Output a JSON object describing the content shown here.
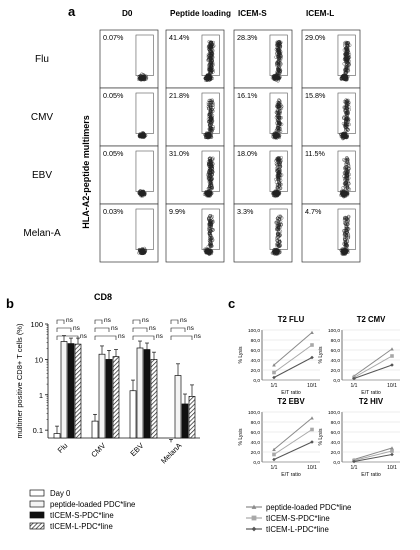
{
  "panel_a": {
    "letter": "a",
    "columns": [
      "D0",
      "Peptide loading",
      "ICEM-S",
      "ICEM-L"
    ],
    "rows": [
      {
        "label": "Flu",
        "values": [
          "0.07%",
          "41.4%",
          "28.3%",
          "29.0%"
        ]
      },
      {
        "label": "CMV",
        "values": [
          "0.05%",
          "21.8%",
          "16.1%",
          "15.8%"
        ]
      },
      {
        "label": "EBV",
        "values": [
          "0.05%",
          "31.0%",
          "18.0%",
          "11.5%"
        ]
      },
      {
        "label": "Melan-A",
        "values": [
          "0.03%",
          "9.9%",
          "3.3%",
          "4.7%"
        ]
      }
    ],
    "ylabel": "HLA-A2-peptide multimers",
    "xlabel": "CD8"
  },
  "panel_b": {
    "letter": "b",
    "chart_data": {
      "type": "bar",
      "categories": [
        "Flu",
        "CMV",
        "EBV",
        "MelanA"
      ],
      "ylabel": "multimer positive CD8+ T cells (%)",
      "yscale": "log",
      "ylim": [
        0.06,
        100
      ],
      "yticks": [
        "0.1",
        "1",
        "10",
        "100"
      ],
      "series": [
        {
          "name": "Day 0",
          "values": [
            0.08,
            0.18,
            1.3,
            0.045
          ],
          "errors": [
            0.05,
            0.1,
            1.3,
            0.01
          ],
          "fill": "#ffffff"
        },
        {
          "name": "peptide-loaded PDC*line",
          "values": [
            32,
            14,
            21,
            3.5
          ],
          "errors": [
            15,
            10,
            12,
            4
          ],
          "fill": "#f4f4f4"
        },
        {
          "name": "tICEM-S-PDC*line",
          "values": [
            28,
            10,
            19,
            0.55
          ],
          "errors": [
            12,
            8,
            10,
            0.5
          ],
          "fill": "#111111"
        },
        {
          "name": "tICEM-L-PDC*line",
          "values": [
            27,
            12,
            10,
            0.9
          ],
          "errors": [
            13,
            7,
            6,
            1.0
          ],
          "fill": "hatch"
        }
      ],
      "significance": "ns"
    }
  },
  "panel_c": {
    "letter": "c",
    "charts": [
      {
        "title": "T2 FLU",
        "series": [
          [
            30,
            95
          ],
          [
            15,
            70
          ],
          [
            5,
            45
          ]
        ]
      },
      {
        "title": "T2 CMV",
        "series": [
          [
            8,
            62
          ],
          [
            5,
            48
          ],
          [
            3,
            30
          ]
        ]
      },
      {
        "title": "T2 EBV",
        "series": [
          [
            25,
            88
          ],
          [
            15,
            65
          ],
          [
            5,
            40
          ]
        ]
      },
      {
        "title": "T2 HIV",
        "series": [
          [
            5,
            28
          ],
          [
            3,
            22
          ],
          [
            1,
            15
          ]
        ]
      }
    ],
    "chart_data": {
      "type": "line",
      "x": [
        "1/1",
        "10/1"
      ],
      "xlabel": "E/T ratio",
      "ylabel": "% Lysis",
      "ylim": [
        0,
        100
      ],
      "yticks": [
        "0,0",
        "20,0",
        "40,0",
        "60,0",
        "80,0",
        "100,0"
      ]
    },
    "legend": [
      {
        "name": "peptide-loaded PDC*line",
        "color": "#8a8a8a",
        "marker": "triangle"
      },
      {
        "name": "tICEM-S-PDC*line",
        "color": "#a8a8a8",
        "marker": "square"
      },
      {
        "name": "tICEM-L-PDC*line",
        "color": "#555555",
        "marker": "diamond"
      }
    ]
  }
}
